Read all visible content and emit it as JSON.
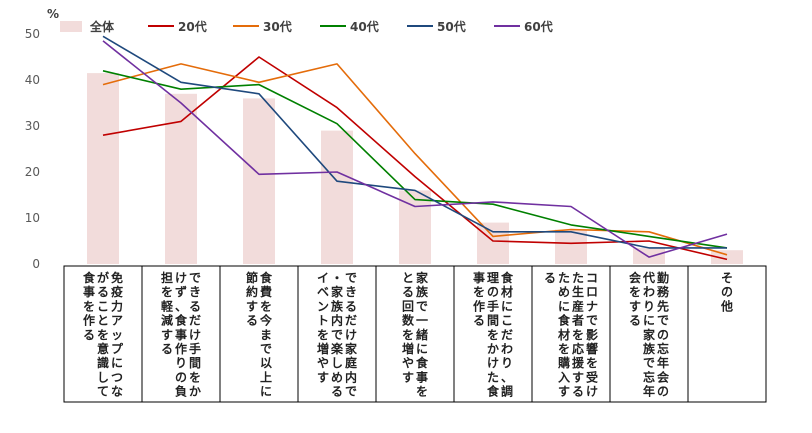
{
  "chart_data": {
    "type": "bar",
    "ylabel": "%",
    "ylim": [
      0,
      50
    ],
    "yticks": [
      "0",
      "10",
      "20",
      "30",
      "40",
      "50"
    ],
    "grid": false,
    "legend_position": "top",
    "categories": [
      "免疫力アップにつながることを意識して食事を作る",
      "できるだけ手間をかけず、食事作りの負担を軽減する",
      "食費を今まで以上に節約する",
      "できるだけ家庭内で・家族内で楽しめるイベントを増やす",
      "家族で一緒に食事をとる回数を増やす",
      "食材にこだわり、調理の手間をかけた食事を作る",
      "コロナで影響を受けた生産者を応援するために食材を購入する",
      "勤務先での忘年会の代わりに家族で忘年会をする",
      "その他"
    ],
    "series": [
      {
        "name": "全体",
        "type": "bar",
        "color": "#f2dcdb",
        "values": [
          41.5,
          37,
          36,
          29,
          16,
          9,
          7.5,
          3.5,
          3
        ]
      },
      {
        "name": "20代",
        "type": "line",
        "color": "#c00000",
        "values": [
          28,
          31,
          45,
          34,
          19,
          5,
          4.5,
          5,
          1
        ]
      },
      {
        "name": "30代",
        "type": "line",
        "color": "#e46c0a",
        "values": [
          39,
          43.5,
          39.5,
          43.5,
          24,
          6,
          7.5,
          7,
          2
        ]
      },
      {
        "name": "40代",
        "type": "line",
        "color": "#008000",
        "values": [
          42,
          38,
          39,
          30.5,
          14,
          13,
          8.5,
          6,
          3.5
        ]
      },
      {
        "name": "50代",
        "type": "line",
        "color": "#1f497d",
        "values": [
          49.5,
          39.5,
          37,
          18,
          16,
          7,
          7,
          3.5,
          3.5
        ]
      },
      {
        "name": "60代",
        "type": "line",
        "color": "#7030a0",
        "values": [
          48.5,
          35,
          19.5,
          20,
          12.5,
          13.5,
          12.5,
          1.5,
          6.5
        ]
      }
    ]
  }
}
